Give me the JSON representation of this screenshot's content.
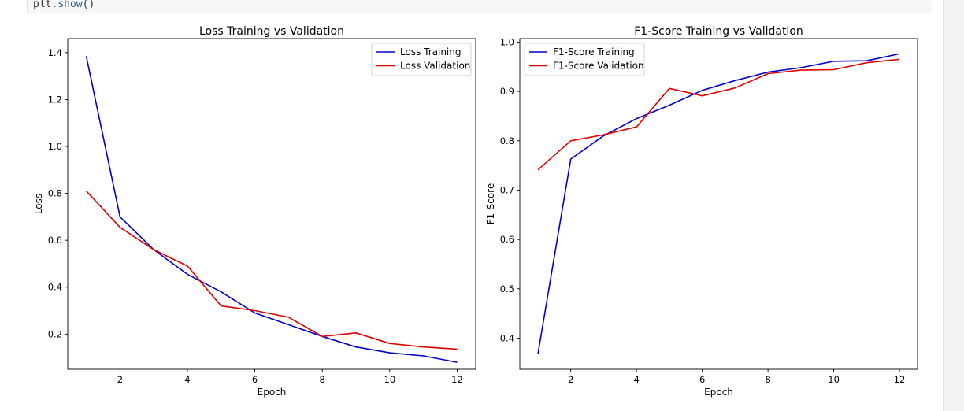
{
  "code": {
    "obj": "plt",
    "dot": ".",
    "fn": "show",
    "parens": "()"
  },
  "colors": {
    "training": "#0000cc",
    "validation": "#e00000",
    "axis": "#000000"
  },
  "chart_data": [
    {
      "type": "line",
      "title": "Loss Training vs Validation",
      "xlabel": "Epoch",
      "ylabel": "Loss",
      "xlim": [
        0.45,
        12.55
      ],
      "ylim": [
        0.05,
        1.46
      ],
      "xticks": [
        2,
        4,
        6,
        8,
        10,
        12
      ],
      "yticks": [
        0.2,
        0.4,
        0.6,
        0.8,
        1.0,
        1.2,
        1.4
      ],
      "grid": false,
      "legend": "upper right",
      "x": [
        1,
        2,
        3,
        4,
        5,
        6,
        7,
        8,
        9,
        10,
        11,
        12
      ],
      "series": [
        {
          "name": "Loss Training",
          "color": "training",
          "values": [
            1.385,
            0.7,
            0.56,
            0.455,
            0.38,
            0.29,
            0.24,
            0.19,
            0.145,
            0.12,
            0.107,
            0.08
          ]
        },
        {
          "name": "Loss Validation",
          "color": "validation",
          "values": [
            0.81,
            0.655,
            0.56,
            0.49,
            0.32,
            0.3,
            0.272,
            0.19,
            0.205,
            0.16,
            0.145,
            0.136
          ]
        }
      ]
    },
    {
      "type": "line",
      "title": "F1-Score Training vs Validation",
      "xlabel": "Epoch",
      "ylabel": "F1-Score",
      "xlim": [
        0.45,
        12.55
      ],
      "ylim": [
        0.337,
        1.007
      ],
      "xticks": [
        2,
        4,
        6,
        8,
        10,
        12
      ],
      "yticks": [
        0.4,
        0.5,
        0.6,
        0.7,
        0.8,
        0.9,
        1.0
      ],
      "grid": false,
      "legend": "upper left",
      "x": [
        1,
        2,
        3,
        4,
        5,
        6,
        7,
        8,
        9,
        10,
        11,
        12
      ],
      "series": [
        {
          "name": "F1-Score Training",
          "color": "training",
          "values": [
            0.368,
            0.763,
            0.81,
            0.845,
            0.872,
            0.902,
            0.922,
            0.939,
            0.948,
            0.961,
            0.962,
            0.976
          ]
        },
        {
          "name": "F1-Score Validation",
          "color": "validation",
          "values": [
            0.741,
            0.8,
            0.812,
            0.828,
            0.906,
            0.891,
            0.907,
            0.936,
            0.943,
            0.944,
            0.958,
            0.965
          ]
        }
      ]
    }
  ]
}
